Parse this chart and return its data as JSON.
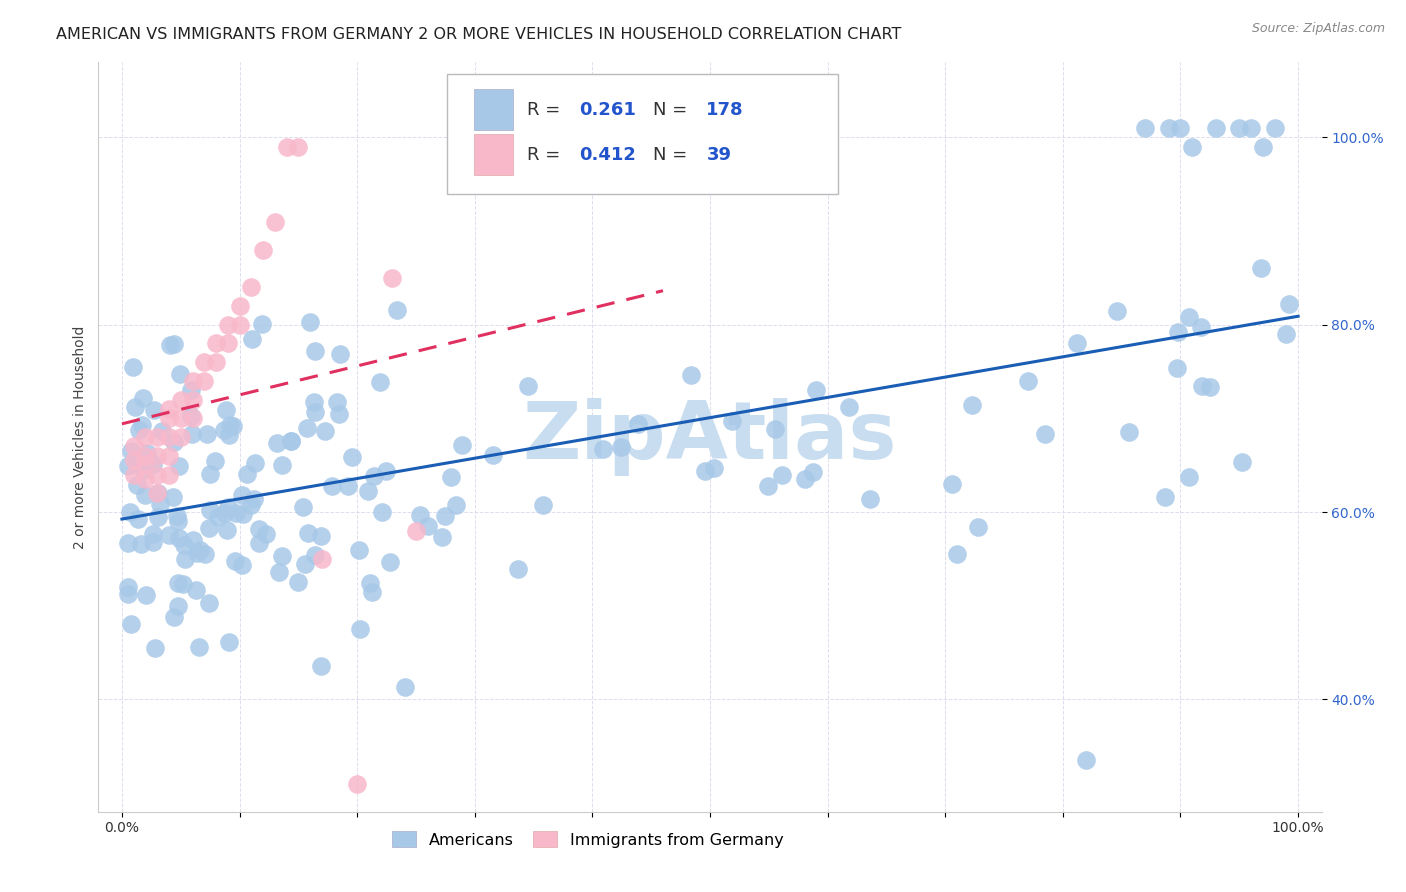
{
  "title": "AMERICAN VS IMMIGRANTS FROM GERMANY 2 OR MORE VEHICLES IN HOUSEHOLD CORRELATION CHART",
  "source": "Source: ZipAtlas.com",
  "ylabel": "2 or more Vehicles in Household",
  "xlim": [
    -0.02,
    1.02
  ],
  "ylim": [
    0.28,
    1.08
  ],
  "americans_R": "0.261",
  "americans_N": "178",
  "germany_R": "0.412",
  "germany_N": "39",
  "americans_scatter_color": "#a8c8e8",
  "germany_scatter_color": "#f8b8ca",
  "americans_line_color": "#1a5db5",
  "germany_line_color": "#e03060",
  "legend_label_americans": "Americans",
  "legend_label_germany": "Immigrants from Germany",
  "watermark": "ZipAtlas",
  "watermark_color": "#c8ddf0",
  "title_fontsize": 11.5,
  "axis_label_fontsize": 10,
  "tick_fontsize": 10,
  "ytick_color": "#3366cc",
  "xtick_color": "#333333",
  "grid_color": "#ddddee",
  "background_color": "#ffffff"
}
